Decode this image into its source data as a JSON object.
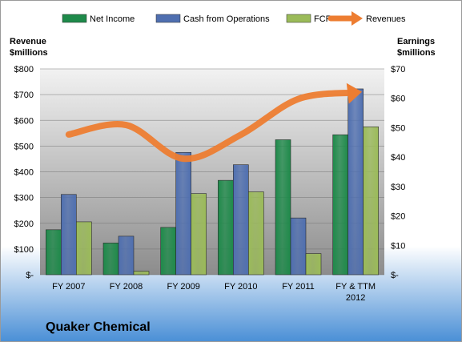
{
  "chart_data": {
    "type": "bar",
    "title": "Quaker Chemical",
    "categories": [
      "FY 2007",
      "FY 2008",
      "FY 2009",
      "FY 2010",
      "FY 2011",
      "FY & TTM 2012"
    ],
    "category_lines": [
      [
        "FY 2007"
      ],
      [
        "FY 2008"
      ],
      [
        "FY 2009"
      ],
      [
        "FY 2010"
      ],
      [
        "FY 2011"
      ],
      [
        "FY & TTM",
        "2012"
      ]
    ],
    "series": [
      {
        "name": "Net Income",
        "axis": "right",
        "color": "#1e8a4a",
        "values": [
          15.3,
          10.8,
          16.1,
          32.1,
          45.9,
          47.6
        ]
      },
      {
        "name": "Cash from Operations",
        "axis": "right",
        "color": "#4f6fb0",
        "values": [
          27.3,
          13.1,
          41.6,
          37.4,
          19.3,
          63.2
        ]
      },
      {
        "name": "FCF",
        "axis": "right",
        "color": "#9bbb59",
        "values": [
          18.0,
          1.2,
          27.6,
          28.2,
          7.2,
          50.3
        ]
      },
      {
        "name": "Revenues",
        "axis": "left",
        "type": "line",
        "color": "#ed7d31",
        "values": [
          545,
          582,
          451,
          544,
          683,
          708
        ]
      }
    ],
    "left_axis": {
      "label_lines": [
        "Revenue",
        "$millions"
      ],
      "ylim": [
        0,
        800
      ],
      "ticks": [
        0,
        100,
        200,
        300,
        400,
        500,
        600,
        700,
        800
      ],
      "tick_labels": [
        "$-",
        "$100",
        "$200",
        "$300",
        "$400",
        "$500",
        "$600",
        "$700",
        "$800"
      ]
    },
    "right_axis": {
      "label_lines": [
        "Earnings",
        "$millions"
      ],
      "ylim": [
        0,
        70
      ],
      "ticks": [
        0,
        10,
        20,
        30,
        40,
        50,
        60,
        70
      ],
      "tick_labels": [
        "$-",
        "$10",
        "$20",
        "$30",
        "$40",
        "$50",
        "$60",
        "$70"
      ]
    },
    "legend_position": "top",
    "grid": true
  },
  "colors": {
    "background_top": "#ffffff",
    "background_bottom": "#4a8fd6",
    "plot_top": "#f2f2f2",
    "plot_bottom": "#8c8c8c"
  }
}
